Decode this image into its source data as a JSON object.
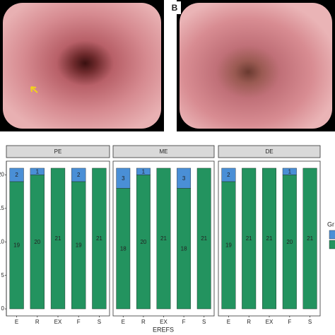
{
  "panel_label": "B",
  "chart_data": {
    "type": "bar",
    "stacked": true,
    "x_label": "EREFS",
    "legend_title": "Gr",
    "categories": [
      "E",
      "R",
      "EX",
      "F",
      "S"
    ],
    "ylim": [
      -1.05,
      22.05
    ],
    "yticks": [
      0,
      5,
      10,
      15,
      20
    ],
    "facets": [
      {
        "title": "PE",
        "series": [
          {
            "color": "#23935f",
            "values": [
              19,
              20,
              21,
              19,
              21
            ]
          },
          {
            "color": "#4a8fd6",
            "values": [
              2,
              1,
              null,
              2,
              null
            ]
          }
        ]
      },
      {
        "title": "ME",
        "series": [
          {
            "color": "#23935f",
            "values": [
              18,
              20,
              21,
              18,
              21
            ]
          },
          {
            "color": "#4a8fd6",
            "values": [
              3,
              1,
              null,
              3,
              null
            ]
          }
        ]
      },
      {
        "title": "DE",
        "series": [
          {
            "color": "#23935f",
            "values": [
              19,
              21,
              21,
              20,
              21
            ]
          },
          {
            "color": "#4a8fd6",
            "values": [
              2,
              null,
              null,
              1,
              null
            ]
          }
        ]
      }
    ]
  }
}
